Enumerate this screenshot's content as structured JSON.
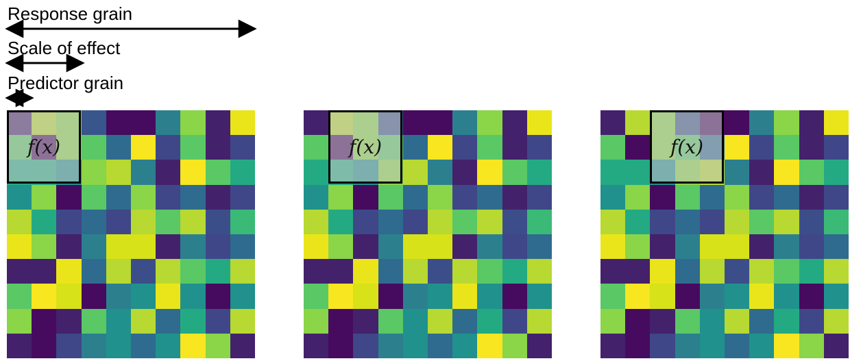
{
  "labels": {
    "response_grain": "Response grain",
    "scale_of_effect": "Scale of effect",
    "predictor_grain": "Predictor grain"
  },
  "function_label": "f(x)",
  "palette": {
    "A": "#44216b",
    "B": "#38568b",
    "C": "#2c808e",
    "D": "#8ad548",
    "E": "#460b5e",
    "F": "#eae51a",
    "G": "#5ac864",
    "H": "#3f4788",
    "I": "#b7d931",
    "J": "#24aa83",
    "K": "#2f6b8e",
    "L": "#20918c",
    "M": "#d7e219",
    "N": "#3c4e8a",
    "O": "#f7e620",
    "P": "#3aba76"
  },
  "grid": [
    [
      "A",
      "I",
      "D",
      "B",
      "E",
      "E",
      "C",
      "D",
      "A",
      "F"
    ],
    [
      "G",
      "E",
      "D",
      "G",
      "K",
      "O",
      "H",
      "G",
      "A",
      "H"
    ],
    [
      "J",
      "J",
      "L",
      "D",
      "I",
      "C",
      "A",
      "O",
      "G",
      "J"
    ],
    [
      "L",
      "D",
      "E",
      "G",
      "K",
      "D",
      "H",
      "K",
      "A",
      "H"
    ],
    [
      "I",
      "J",
      "H",
      "K",
      "H",
      "I",
      "G",
      "I",
      "N",
      "P"
    ],
    [
      "F",
      "D",
      "A",
      "C",
      "M",
      "M",
      "A",
      "C",
      "H",
      "K"
    ],
    [
      "A",
      "A",
      "F",
      "K",
      "I",
      "N",
      "I",
      "G",
      "J",
      "I"
    ],
    [
      "G",
      "O",
      "M",
      "E",
      "C",
      "L",
      "F",
      "L",
      "E",
      "L"
    ],
    [
      "D",
      "E",
      "A",
      "G",
      "L",
      "I",
      "K",
      "J",
      "H",
      "I"
    ],
    [
      "A",
      "E",
      "H",
      "C",
      "L",
      "K",
      "L",
      "O",
      "D",
      "A"
    ]
  ]
}
